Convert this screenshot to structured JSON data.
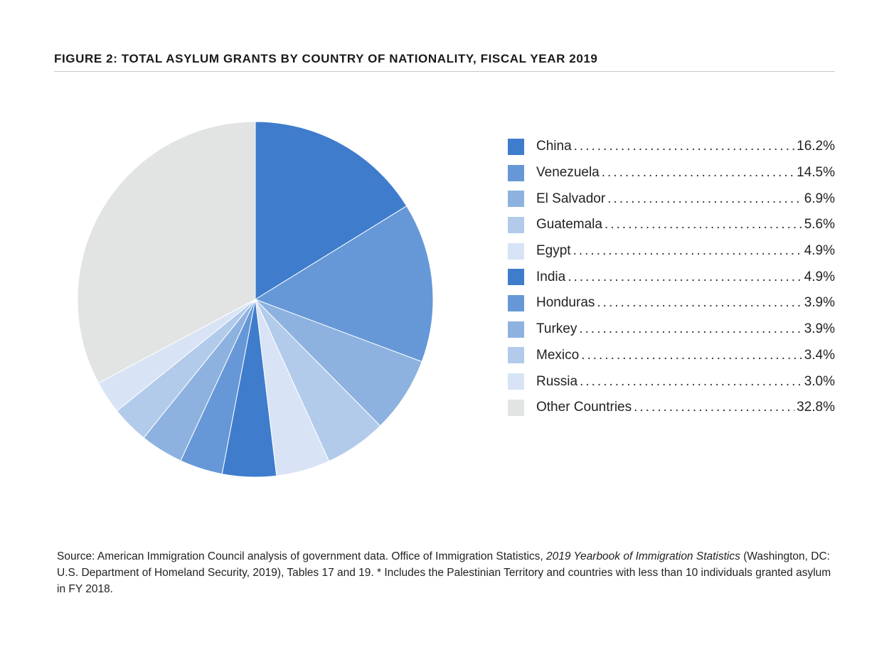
{
  "chart_data": {
    "type": "pie",
    "title": "FIGURE 2: TOTAL ASYLUM GRANTS BY COUNTRY OF NATIONALITY, FISCAL YEAR 2019",
    "categories": [
      "China",
      "Venezuela",
      "El Salvador",
      "Guatemala",
      "Egypt",
      "India",
      "Honduras",
      "Turkey",
      "Mexico",
      "Russia",
      "Other Countries"
    ],
    "values": [
      16.2,
      14.5,
      6.9,
      5.6,
      4.9,
      4.9,
      3.9,
      3.9,
      3.4,
      3.0,
      32.8
    ],
    "labels": [
      "16.2%",
      "14.5%",
      "6.9%",
      "5.6%",
      "4.9%",
      "4.9%",
      "3.9%",
      "3.9%",
      "3.4%",
      "3.0%",
      "32.8%"
    ],
    "colors": [
      "#3f7ccc",
      "#6698d8",
      "#8db2e0",
      "#b2cbeb",
      "#d8e4f5",
      "#3f7ccc",
      "#6698d8",
      "#8db2e0",
      "#b2cbeb",
      "#d8e4f5",
      "#e1e4e3"
    ],
    "legend_position": "right"
  },
  "source": {
    "prefix": "Source: American Immigration Council analysis of government data. Office of Immigration Statistics, ",
    "italic": "2019 Yearbook of Immigration Statistics",
    "suffix": " (Washington, DC: U.S. Department of Homeland Security, 2019), Tables 17 and 19. * Includes the Palestinian Territory and countries with less than 10 individuals granted asylum in FY 2018."
  }
}
